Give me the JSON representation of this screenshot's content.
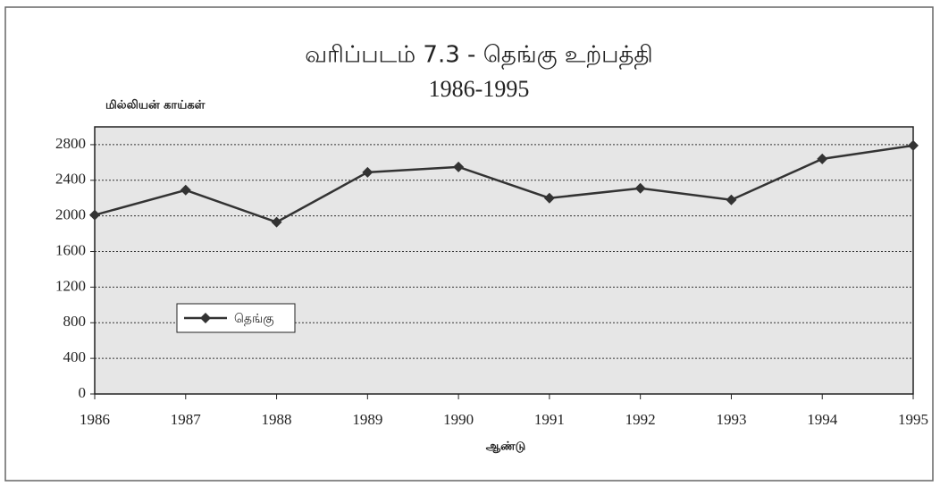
{
  "chart_data": {
    "type": "line",
    "title": "வரிப்படம் 7.3 - தெங்கு உற்பத்தி",
    "subtitle": "1986-1995",
    "y_label": "மில்லியன் காய்கள்",
    "x_label": "ஆண்டு",
    "x": [
      1986,
      1987,
      1988,
      1989,
      1990,
      1991,
      1992,
      1993,
      1994,
      1995
    ],
    "series": [
      {
        "name": "தெங்கு",
        "color": "#333333",
        "values": [
          2010,
          2290,
          1930,
          2490,
          2550,
          2200,
          2310,
          2180,
          2640,
          2790
        ]
      }
    ],
    "xlim": [
      1986,
      1995
    ],
    "xticks": [
      1986,
      1987,
      1988,
      1989,
      1990,
      1991,
      1992,
      1993,
      1994,
      1995
    ],
    "ylim": [
      0,
      3000
    ],
    "yticks": [
      0,
      400,
      800,
      1200,
      1600,
      2000,
      2400,
      2800
    ],
    "grid": true,
    "legend": "lower-left"
  }
}
